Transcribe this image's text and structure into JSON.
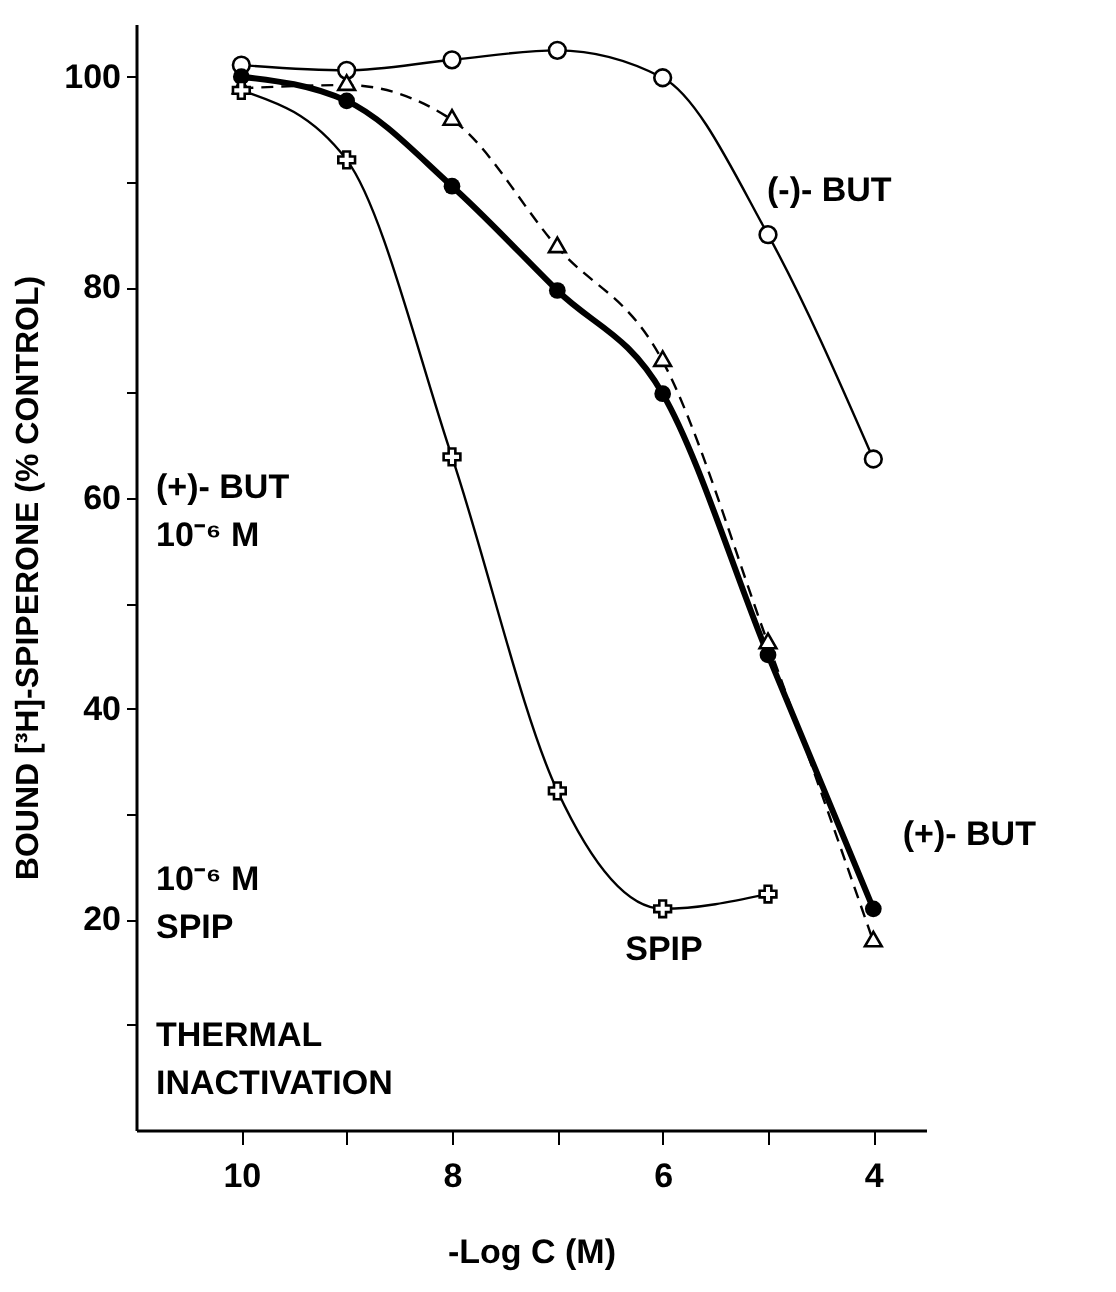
{
  "chart_data": {
    "type": "line",
    "xlabel": "-Log C (M)",
    "ylabel": "BOUND [³H]-SPIPERONE (% CONTROL)",
    "xlim": [
      11,
      3.5
    ],
    "xticks": [
      10,
      {
        "value": 9,
        "label": null
      },
      8,
      {
        "value": 7,
        "label": null
      },
      6,
      {
        "value": 5,
        "label": null
      },
      4
    ],
    "ylim": [
      0,
      105
    ],
    "yticks": [
      {
        "value": 10,
        "label": null
      },
      20,
      {
        "value": 30,
        "label": null
      },
      40,
      {
        "value": 50,
        "label": null
      },
      60,
      {
        "value": 70,
        "label": null
      },
      80,
      {
        "value": 90,
        "label": null
      },
      100
    ],
    "x": [
      10,
      9,
      8,
      7,
      6,
      5,
      4
    ],
    "grid": false,
    "series": [
      {
        "name": "(-)- BUT",
        "color": "#000000",
        "marker": "circle",
        "line_style": "solid",
        "values": [
          101.1,
          100.6,
          101.6,
          102.5,
          99.9,
          85,
          63.7
        ]
      },
      {
        "name": "(+)- BUT",
        "color": "#000000",
        "marker": "circle",
        "line_style": "solid",
        "values": [
          100,
          97.7,
          89.6,
          79.7,
          69.9,
          45.1,
          21.0
        ]
      },
      {
        "color": "#000000",
        "marker": "triangle",
        "line_style": "dashed",
        "values": [
          98.9,
          99.2,
          95.9,
          83.8,
          73.0,
          46.2,
          17.9
        ]
      },
      {
        "name": "SPIP",
        "color": "#000000",
        "marker": "cross",
        "line_style": "solid",
        "values": [
          98.7,
          92.1,
          63.9,
          32.2,
          21.0,
          22.4,
          null
        ]
      }
    ],
    "annotations": [
      "(+)- BUT\n10⁻⁶ M",
      "10⁻⁶ M\nSPIP",
      "THERMAL\nINACTIVATION"
    ]
  }
}
